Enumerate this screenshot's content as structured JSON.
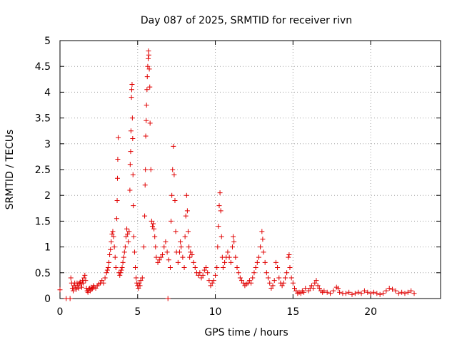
{
  "chart_data": {
    "type": "scatter",
    "title": "Day 087 of 2025, SRMTID for receiver rivn",
    "xlabel": "GPS time / hours",
    "ylabel": "SRMTID / TECUs",
    "xlim": [
      0,
      24.5
    ],
    "ylim": [
      0,
      5
    ],
    "xticks": [
      0,
      5,
      10,
      15,
      20
    ],
    "xtick_labels": [
      "0",
      "5",
      "10",
      "15",
      "20"
    ],
    "yticks": [
      0,
      0.5,
      1,
      1.5,
      2,
      2.5,
      3,
      3.5,
      4,
      4.5,
      5
    ],
    "ytick_labels": [
      "0",
      "0.5",
      "1",
      "1.5",
      "2",
      "2.5",
      "3",
      "3.5",
      "4",
      "4.5",
      "5"
    ],
    "grid": true,
    "marker": "+",
    "color": "#e00000",
    "series": [
      {
        "name": "SRMTID",
        "points": [
          [
            0.0,
            0.17
          ],
          [
            0.4,
            0.0
          ],
          [
            0.65,
            0.0
          ],
          [
            0.7,
            0.4
          ],
          [
            0.75,
            0.3
          ],
          [
            0.8,
            0.2
          ],
          [
            0.85,
            0.15
          ],
          [
            0.9,
            0.25
          ],
          [
            0.95,
            0.3
          ],
          [
            1.0,
            0.22
          ],
          [
            1.05,
            0.18
          ],
          [
            1.1,
            0.3
          ],
          [
            1.15,
            0.25
          ],
          [
            1.2,
            0.2
          ],
          [
            1.25,
            0.3
          ],
          [
            1.3,
            0.32
          ],
          [
            1.35,
            0.28
          ],
          [
            1.4,
            0.22
          ],
          [
            1.45,
            0.35
          ],
          [
            1.5,
            0.3
          ],
          [
            1.55,
            0.4
          ],
          [
            1.6,
            0.45
          ],
          [
            1.65,
            0.35
          ],
          [
            1.7,
            0.2
          ],
          [
            1.75,
            0.15
          ],
          [
            1.8,
            0.12
          ],
          [
            1.85,
            0.18
          ],
          [
            1.9,
            0.2
          ],
          [
            1.95,
            0.15
          ],
          [
            2.0,
            0.22
          ],
          [
            2.05,
            0.18
          ],
          [
            2.1,
            0.2
          ],
          [
            2.15,
            0.25
          ],
          [
            2.2,
            0.22
          ],
          [
            2.3,
            0.2
          ],
          [
            2.4,
            0.25
          ],
          [
            2.5,
            0.28
          ],
          [
            2.6,
            0.3
          ],
          [
            2.7,
            0.35
          ],
          [
            2.8,
            0.3
          ],
          [
            2.9,
            0.4
          ],
          [
            3.0,
            0.5
          ],
          [
            3.05,
            0.55
          ],
          [
            3.1,
            0.6
          ],
          [
            3.15,
            0.7
          ],
          [
            3.2,
            0.85
          ],
          [
            3.25,
            0.95
          ],
          [
            3.3,
            1.1
          ],
          [
            3.35,
            1.25
          ],
          [
            3.4,
            1.3
          ],
          [
            3.45,
            1.2
          ],
          [
            3.5,
            1.0
          ],
          [
            3.55,
            0.8
          ],
          [
            3.6,
            0.6
          ],
          [
            3.65,
            1.55
          ],
          [
            3.68,
            1.9
          ],
          [
            3.7,
            2.33
          ],
          [
            3.72,
            2.7
          ],
          [
            3.75,
            3.12
          ],
          [
            3.8,
            0.5
          ],
          [
            3.85,
            0.45
          ],
          [
            3.9,
            0.5
          ],
          [
            3.95,
            0.55
          ],
          [
            4.0,
            0.6
          ],
          [
            4.05,
            0.7
          ],
          [
            4.1,
            0.8
          ],
          [
            4.15,
            0.9
          ],
          [
            4.2,
            1.0
          ],
          [
            4.25,
            1.2
          ],
          [
            4.3,
            1.35
          ],
          [
            4.35,
            1.25
          ],
          [
            4.4,
            1.1
          ],
          [
            4.45,
            1.3
          ],
          [
            4.5,
            2.1
          ],
          [
            4.52,
            2.6
          ],
          [
            4.55,
            2.85
          ],
          [
            4.57,
            3.25
          ],
          [
            4.6,
            3.9
          ],
          [
            4.62,
            4.05
          ],
          [
            4.64,
            4.15
          ],
          [
            4.66,
            3.5
          ],
          [
            4.68,
            3.1
          ],
          [
            4.7,
            2.4
          ],
          [
            4.72,
            1.8
          ],
          [
            4.75,
            1.2
          ],
          [
            4.8,
            0.9
          ],
          [
            4.85,
            0.6
          ],
          [
            4.9,
            0.4
          ],
          [
            4.95,
            0.3
          ],
          [
            5.0,
            0.25
          ],
          [
            5.05,
            0.2
          ],
          [
            5.1,
            0.3
          ],
          [
            5.15,
            0.25
          ],
          [
            5.2,
            0.35
          ],
          [
            5.3,
            0.4
          ],
          [
            5.4,
            1.0
          ],
          [
            5.45,
            1.6
          ],
          [
            5.48,
            2.2
          ],
          [
            5.5,
            2.5
          ],
          [
            5.52,
            3.15
          ],
          [
            5.55,
            3.45
          ],
          [
            5.57,
            3.75
          ],
          [
            5.6,
            4.05
          ],
          [
            5.62,
            4.3
          ],
          [
            5.65,
            4.5
          ],
          [
            5.68,
            4.65
          ],
          [
            5.7,
            4.8
          ],
          [
            5.72,
            4.72
          ],
          [
            5.75,
            4.45
          ],
          [
            5.78,
            4.1
          ],
          [
            5.8,
            3.4
          ],
          [
            5.85,
            2.5
          ],
          [
            5.9,
            1.5
          ],
          [
            5.95,
            1.4
          ],
          [
            6.0,
            1.45
          ],
          [
            6.05,
            1.35
          ],
          [
            6.1,
            1.2
          ],
          [
            6.15,
            1.0
          ],
          [
            6.2,
            0.8
          ],
          [
            6.3,
            0.7
          ],
          [
            6.4,
            0.75
          ],
          [
            6.5,
            0.8
          ],
          [
            6.6,
            0.85
          ],
          [
            6.7,
            1.0
          ],
          [
            6.8,
            1.1
          ],
          [
            6.9,
            0.9
          ],
          [
            7.0,
            0.75
          ],
          [
            6.95,
            0.0
          ],
          [
            7.1,
            0.6
          ],
          [
            7.15,
            1.5
          ],
          [
            7.2,
            2.0
          ],
          [
            7.25,
            2.5
          ],
          [
            7.3,
            2.95
          ],
          [
            7.35,
            2.4
          ],
          [
            7.4,
            1.9
          ],
          [
            7.45,
            1.3
          ],
          [
            7.5,
            0.9
          ],
          [
            7.6,
            0.7
          ],
          [
            7.7,
            0.9
          ],
          [
            7.75,
            1.1
          ],
          [
            7.8,
            1.0
          ],
          [
            7.9,
            0.8
          ],
          [
            8.0,
            0.6
          ],
          [
            8.05,
            1.2
          ],
          [
            8.1,
            1.6
          ],
          [
            8.15,
            2.0
          ],
          [
            8.2,
            1.7
          ],
          [
            8.25,
            1.3
          ],
          [
            8.3,
            1.0
          ],
          [
            8.35,
            0.8
          ],
          [
            8.4,
            0.9
          ],
          [
            8.5,
            0.85
          ],
          [
            8.6,
            0.7
          ],
          [
            8.7,
            0.6
          ],
          [
            8.8,
            0.5
          ],
          [
            8.9,
            0.45
          ],
          [
            9.0,
            0.5
          ],
          [
            9.1,
            0.4
          ],
          [
            9.2,
            0.45
          ],
          [
            9.3,
            0.55
          ],
          [
            9.4,
            0.6
          ],
          [
            9.5,
            0.5
          ],
          [
            9.6,
            0.35
          ],
          [
            9.7,
            0.25
          ],
          [
            9.8,
            0.3
          ],
          [
            9.9,
            0.35
          ],
          [
            10.0,
            0.45
          ],
          [
            10.1,
            0.6
          ],
          [
            10.15,
            1.0
          ],
          [
            10.2,
            1.4
          ],
          [
            10.25,
            1.8
          ],
          [
            10.3,
            2.05
          ],
          [
            10.35,
            1.7
          ],
          [
            10.4,
            1.2
          ],
          [
            10.45,
            0.8
          ],
          [
            10.5,
            0.6
          ],
          [
            10.6,
            0.7
          ],
          [
            10.7,
            0.8
          ],
          [
            10.8,
            0.9
          ],
          [
            10.9,
            0.8
          ],
          [
            11.0,
            0.7
          ],
          [
            11.1,
            1.0
          ],
          [
            11.15,
            1.2
          ],
          [
            11.2,
            1.1
          ],
          [
            11.3,
            0.8
          ],
          [
            11.4,
            0.6
          ],
          [
            11.5,
            0.5
          ],
          [
            11.6,
            0.4
          ],
          [
            11.7,
            0.35
          ],
          [
            11.8,
            0.3
          ],
          [
            11.9,
            0.25
          ],
          [
            12.0,
            0.28
          ],
          [
            12.1,
            0.3
          ],
          [
            12.2,
            0.35
          ],
          [
            12.3,
            0.3
          ],
          [
            12.4,
            0.4
          ],
          [
            12.5,
            0.5
          ],
          [
            12.6,
            0.6
          ],
          [
            12.7,
            0.7
          ],
          [
            12.8,
            0.8
          ],
          [
            12.9,
            1.0
          ],
          [
            13.0,
            1.3
          ],
          [
            13.05,
            1.15
          ],
          [
            13.1,
            0.9
          ],
          [
            13.2,
            0.7
          ],
          [
            13.3,
            0.5
          ],
          [
            13.4,
            0.4
          ],
          [
            13.5,
            0.3
          ],
          [
            13.6,
            0.2
          ],
          [
            13.7,
            0.25
          ],
          [
            13.8,
            0.35
          ],
          [
            13.9,
            0.7
          ],
          [
            14.0,
            0.6
          ],
          [
            14.1,
            0.4
          ],
          [
            14.2,
            0.3
          ],
          [
            14.3,
            0.25
          ],
          [
            14.4,
            0.3
          ],
          [
            14.5,
            0.4
          ],
          [
            14.6,
            0.5
          ],
          [
            14.7,
            0.8
          ],
          [
            14.75,
            0.85
          ],
          [
            14.8,
            0.6
          ],
          [
            14.9,
            0.4
          ],
          [
            15.0,
            0.3
          ],
          [
            15.1,
            0.2
          ],
          [
            15.2,
            0.15
          ],
          [
            15.3,
            0.1
          ],
          [
            15.4,
            0.12
          ],
          [
            15.5,
            0.1
          ],
          [
            15.6,
            0.15
          ],
          [
            15.7,
            0.12
          ],
          [
            15.8,
            0.2
          ],
          [
            16.0,
            0.15
          ],
          [
            16.1,
            0.2
          ],
          [
            16.2,
            0.25
          ],
          [
            16.3,
            0.2
          ],
          [
            16.4,
            0.3
          ],
          [
            16.5,
            0.35
          ],
          [
            16.6,
            0.25
          ],
          [
            16.7,
            0.2
          ],
          [
            16.8,
            0.15
          ],
          [
            16.9,
            0.12
          ],
          [
            17.0,
            0.15
          ],
          [
            17.2,
            0.12
          ],
          [
            17.4,
            0.1
          ],
          [
            17.6,
            0.15
          ],
          [
            17.8,
            0.22
          ],
          [
            17.9,
            0.2
          ],
          [
            18.0,
            0.12
          ],
          [
            18.2,
            0.1
          ],
          [
            18.4,
            0.1
          ],
          [
            18.6,
            0.12
          ],
          [
            18.8,
            0.08
          ],
          [
            19.0,
            0.1
          ],
          [
            19.2,
            0.12
          ],
          [
            19.4,
            0.1
          ],
          [
            19.6,
            0.15
          ],
          [
            19.8,
            0.12
          ],
          [
            20.0,
            0.1
          ],
          [
            20.2,
            0.12
          ],
          [
            20.4,
            0.1
          ],
          [
            20.6,
            0.08
          ],
          [
            20.8,
            0.1
          ],
          [
            21.0,
            0.15
          ],
          [
            21.2,
            0.2
          ],
          [
            21.4,
            0.18
          ],
          [
            21.6,
            0.15
          ],
          [
            21.8,
            0.1
          ],
          [
            22.0,
            0.12
          ],
          [
            22.2,
            0.1
          ],
          [
            22.4,
            0.12
          ],
          [
            22.6,
            0.15
          ],
          [
            22.8,
            0.1
          ]
        ]
      }
    ]
  }
}
